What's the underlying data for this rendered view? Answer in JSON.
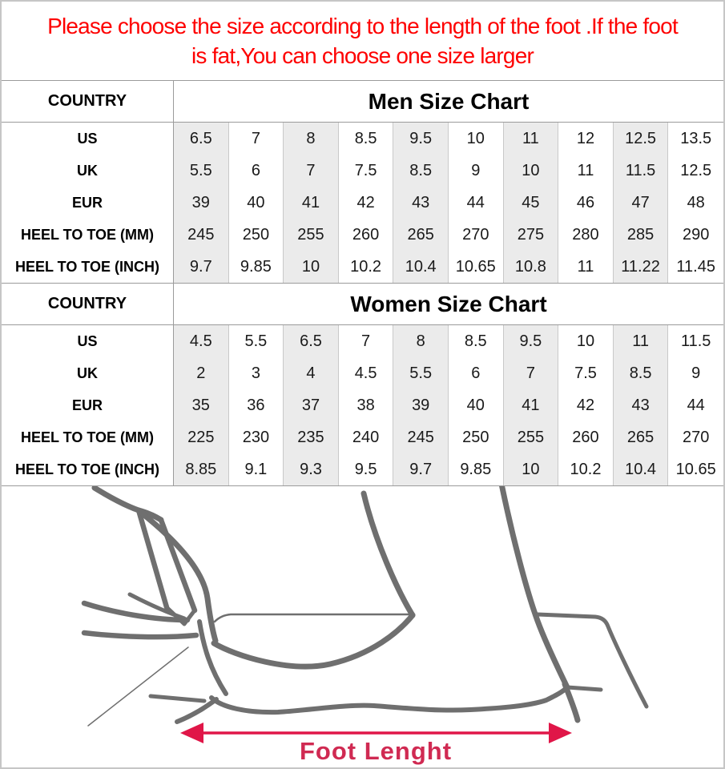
{
  "notice": {
    "line1": "Please choose the size according to the length of the foot .If the foot",
    "line2": "is fat,You can choose one size larger"
  },
  "tables": [
    {
      "corner_label": "COUNTRY",
      "title": "Men Size Chart",
      "rows": [
        {
          "label": "US",
          "values": [
            "6.5",
            "7",
            "8",
            "8.5",
            "9.5",
            "10",
            "11",
            "12",
            "12.5",
            "13.5"
          ]
        },
        {
          "label": "UK",
          "values": [
            "5.5",
            "6",
            "7",
            "7.5",
            "8.5",
            "9",
            "10",
            "11",
            "11.5",
            "12.5"
          ]
        },
        {
          "label": "EUR",
          "values": [
            "39",
            "40",
            "41",
            "42",
            "43",
            "44",
            "45",
            "46",
            "47",
            "48"
          ]
        },
        {
          "label": "HEEL TO TOE (MM)",
          "values": [
            "245",
            "250",
            "255",
            "260",
            "265",
            "270",
            "275",
            "280",
            "285",
            "290"
          ]
        },
        {
          "label": "HEEL TO TOE (INCH)",
          "values": [
            "9.7",
            "9.85",
            "10",
            "10.2",
            "10.4",
            "10.65",
            "10.8",
            "11",
            "11.22",
            "11.45"
          ]
        }
      ]
    },
    {
      "corner_label": "COUNTRY",
      "title": "Women Size Chart",
      "rows": [
        {
          "label": "US",
          "values": [
            "4.5",
            "5.5",
            "6.5",
            "7",
            "8",
            "8.5",
            "9.5",
            "10",
            "11",
            "11.5"
          ]
        },
        {
          "label": "UK",
          "values": [
            "2",
            "3",
            "4",
            "4.5",
            "5.5",
            "6",
            "7",
            "7.5",
            "8.5",
            "9"
          ]
        },
        {
          "label": "EUR",
          "values": [
            "35",
            "36",
            "37",
            "38",
            "39",
            "40",
            "41",
            "42",
            "43",
            "44"
          ]
        },
        {
          "label": "HEEL TO TOE (MM)",
          "values": [
            "225",
            "230",
            "235",
            "240",
            "245",
            "250",
            "255",
            "260",
            "265",
            "270"
          ]
        },
        {
          "label": "HEEL TO TOE (INCH)",
          "values": [
            "8.85",
            "9.1",
            "9.3",
            "9.5",
            "9.7",
            "9.85",
            "10",
            "10.2",
            "10.4",
            "10.65"
          ]
        }
      ]
    }
  ],
  "diagram": {
    "label": "Foot Lenght"
  },
  "colors": {
    "notice_red": "#fe0000",
    "arrow_red": "#e01648",
    "arrow_label_red": "#d02a52",
    "stripe_gray": "#ebebeb",
    "grid_line_gray": "#9b9b9b",
    "column_line_gray": "#c9c9c9",
    "sketch_gray": "#6f6f6f"
  }
}
